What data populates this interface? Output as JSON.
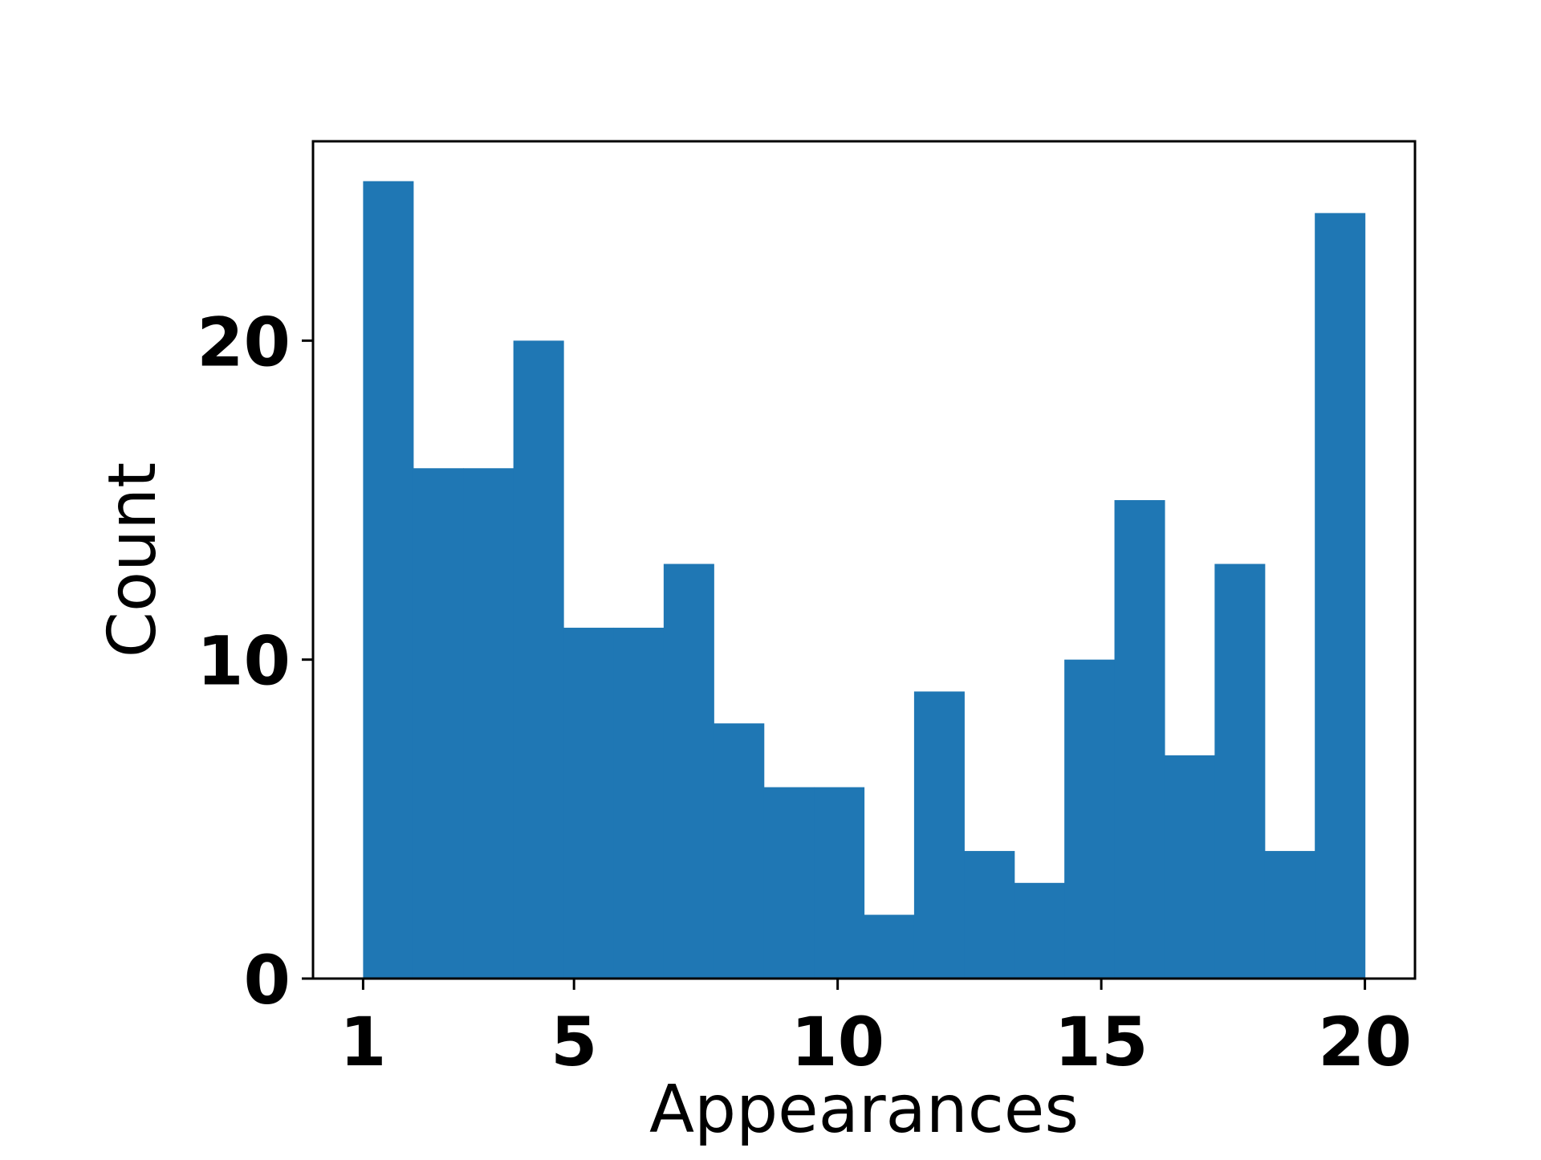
{
  "chart_data": {
    "type": "bar",
    "xlabel": "Appearances",
    "ylabel": "Count",
    "bin_edges": [
      1,
      1.95,
      2.9,
      3.85,
      4.8,
      5.75,
      6.7,
      7.65,
      8.6,
      9.55,
      10.5,
      11.45,
      12.4,
      13.35,
      14.3,
      15.25,
      16.2,
      17.15,
      18.1,
      19.05,
      20
    ],
    "values": [
      25,
      16,
      16,
      20,
      11,
      11,
      13,
      8,
      6,
      6,
      2,
      9,
      4,
      3,
      10,
      15,
      7,
      13,
      4,
      24
    ],
    "xticks": [
      1,
      5,
      10,
      15,
      20
    ],
    "xtick_labels": [
      "1",
      "5",
      "10",
      "15",
      "20"
    ],
    "yticks": [
      0,
      10,
      20
    ],
    "ytick_labels": [
      "0",
      "10",
      "20"
    ],
    "xlim": [
      0.05,
      20.95
    ],
    "ylim": [
      0,
      26.25
    ],
    "grid": false,
    "bar_color": "#1f77b4"
  }
}
